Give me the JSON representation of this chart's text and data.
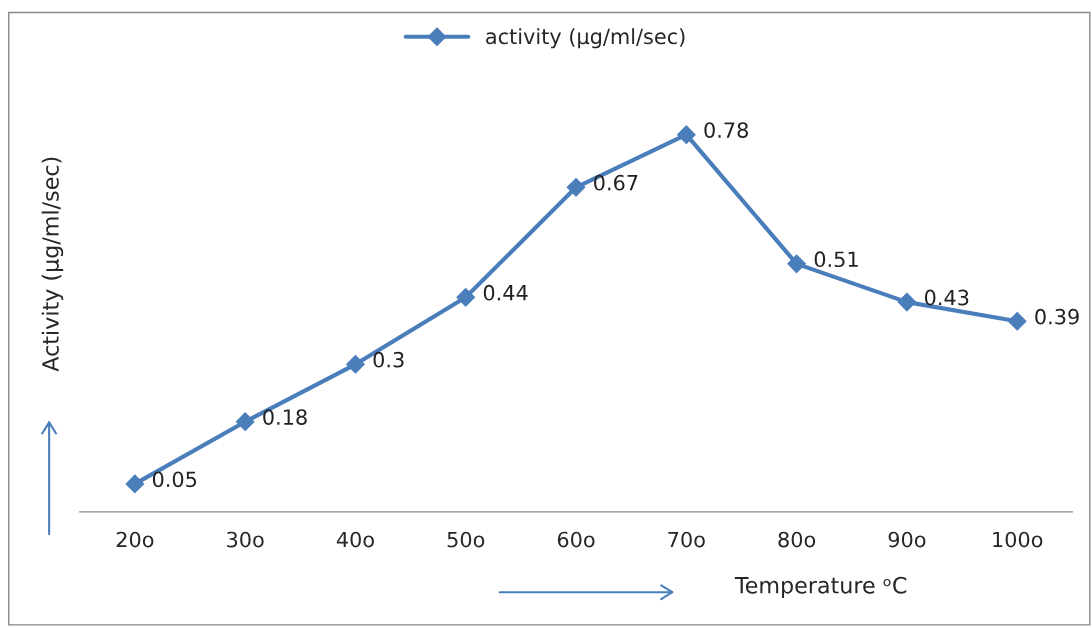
{
  "chart_data": {
    "type": "line",
    "xlabel": "Temperature ᵒC",
    "ylabel": "Activity (µg/ml/sec)",
    "categories": [
      "20o",
      "30o",
      "40o",
      "50o",
      "60o",
      "70o",
      "80o",
      "90o",
      "100o"
    ],
    "series": [
      {
        "name": "activity (µg/ml/sec)",
        "color": "#4a7ebb",
        "values": [
          0.05,
          0.18,
          0.3,
          0.44,
          0.67,
          0.78,
          0.51,
          0.43,
          0.39
        ]
      }
    ],
    "tick_labels": "x",
    "data_labels": true,
    "legend": "top",
    "marker": "diamond",
    "line_style": "solid",
    "grid": false
  }
}
